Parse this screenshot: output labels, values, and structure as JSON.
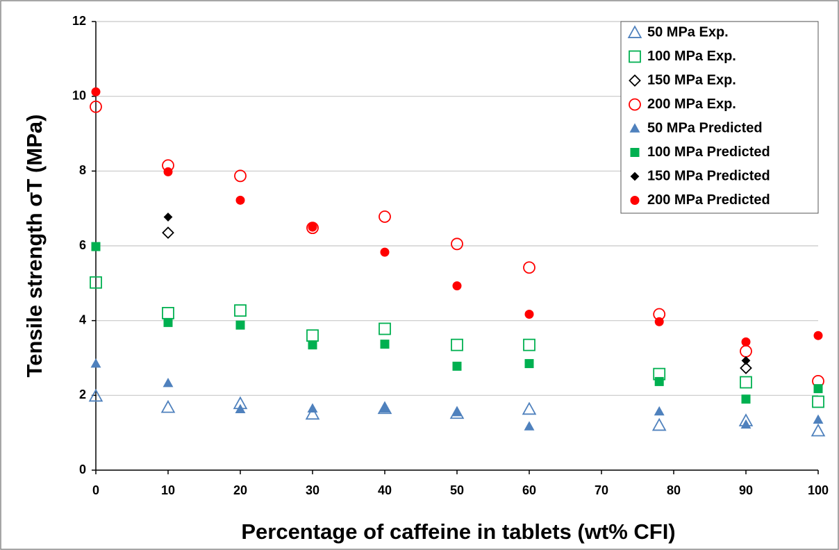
{
  "chart_data": {
    "type": "scatter",
    "xlabel": "Percentage of caffeine in tablets (wt%  CFI)",
    "ylabel": "Tensile strength σT (MPa)",
    "xlim": [
      0,
      100
    ],
    "xticks": [
      0,
      10,
      20,
      30,
      40,
      50,
      60,
      70,
      80,
      90,
      100
    ],
    "ylim": [
      0,
      12
    ],
    "yticks": [
      0,
      2,
      4,
      6,
      8,
      10,
      12
    ],
    "grid": true,
    "legend": "upper right",
    "series": [
      {
        "name": "50 MPa Exp.",
        "color": "#4f81bd",
        "marker": "triangle",
        "filled": false,
        "x": [
          0,
          10,
          20,
          30,
          40,
          50,
          60,
          78,
          90,
          100
        ],
        "values": [
          1.98,
          1.68,
          1.78,
          1.5,
          1.65,
          1.52,
          1.63,
          1.2,
          1.32,
          1.05
        ]
      },
      {
        "name": "100 MPa Exp.",
        "color": "#00b050",
        "marker": "square",
        "filled": false,
        "x": [
          0,
          10,
          20,
          30,
          40,
          50,
          60,
          78,
          90,
          100
        ],
        "values": [
          5.02,
          4.2,
          4.27,
          3.6,
          3.78,
          3.35,
          3.35,
          2.57,
          2.35,
          1.83
        ]
      },
      {
        "name": "150 MPa Exp.",
        "color": "#000000",
        "marker": "diamond",
        "filled": false,
        "x": [
          10,
          90
        ],
        "values": [
          6.35,
          2.73
        ]
      },
      {
        "name": "200 MPa Exp.",
        "color": "#ff0000",
        "marker": "circle",
        "filled": false,
        "x": [
          0,
          10,
          20,
          30,
          40,
          50,
          60,
          78,
          90,
          100
        ],
        "values": [
          9.72,
          8.15,
          7.87,
          6.48,
          6.78,
          6.05,
          5.42,
          4.17,
          3.18,
          2.38
        ]
      },
      {
        "name": "50 MPa Predicted",
        "color": "#4f81bd",
        "marker": "triangle",
        "filled": true,
        "x": [
          0,
          10,
          20,
          30,
          40,
          50,
          60,
          78,
          90,
          100
        ],
        "values": [
          2.85,
          2.33,
          1.63,
          1.65,
          1.65,
          1.55,
          1.17,
          1.57,
          1.22,
          1.35
        ]
      },
      {
        "name": "100 MPa Predicted",
        "color": "#00b050",
        "marker": "square",
        "filled": true,
        "x": [
          0,
          10,
          20,
          30,
          40,
          50,
          60,
          78,
          90,
          100
        ],
        "values": [
          5.98,
          3.95,
          3.88,
          3.35,
          3.37,
          2.78,
          2.85,
          2.37,
          1.9,
          2.18
        ]
      },
      {
        "name": "150 MPa Predicted",
        "color": "#000000",
        "marker": "diamond",
        "filled": true,
        "x": [
          10,
          90
        ],
        "values": [
          6.77,
          2.93
        ]
      },
      {
        "name": "200 MPa Predicted",
        "color": "#ff0000",
        "marker": "circle",
        "filled": true,
        "x": [
          0,
          10,
          20,
          30,
          40,
          50,
          60,
          78,
          90,
          100
        ],
        "values": [
          10.12,
          7.98,
          7.22,
          6.5,
          5.83,
          4.93,
          4.17,
          3.97,
          3.43,
          3.6
        ]
      }
    ]
  }
}
